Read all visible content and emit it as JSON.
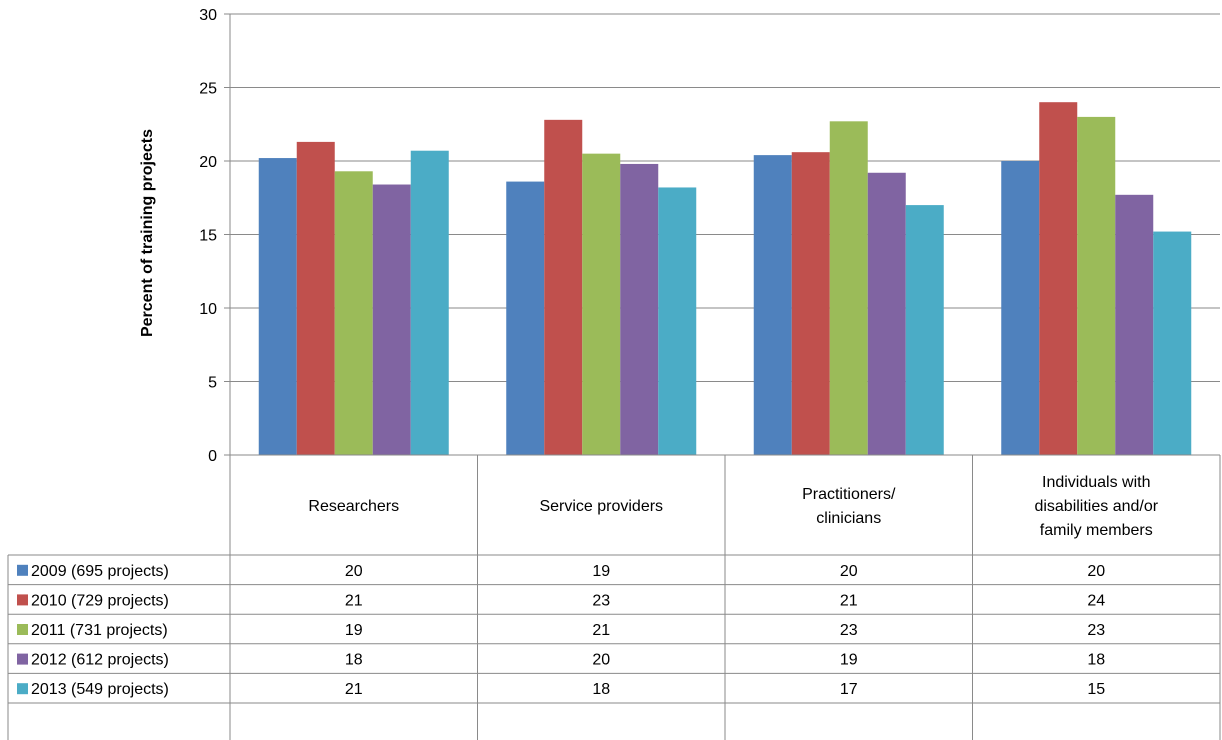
{
  "chart_data": {
    "type": "bar",
    "ylabel": "Percent of training projects",
    "xlabel": "",
    "ylim": [
      0,
      30
    ],
    "yticks": [
      0,
      5,
      10,
      15,
      20,
      25,
      30
    ],
    "grid": true,
    "legend_position": "data-table-left",
    "categories": [
      [
        "Researchers"
      ],
      [
        "Service providers"
      ],
      [
        "Practitioners/",
        "clinicians"
      ],
      [
        "Individuals with",
        "disabilities and/or",
        "family members"
      ]
    ],
    "series": [
      {
        "name": "2009 (695 projects)",
        "color": "#4f81bd",
        "values": [
          20.2,
          18.6,
          20.4,
          20.0
        ],
        "table_labels": [
          "20",
          "19",
          "20",
          "20"
        ]
      },
      {
        "name": "2010 (729 projects)",
        "color": "#c0504d",
        "values": [
          21.3,
          22.8,
          20.6,
          24.0
        ],
        "table_labels": [
          "21",
          "23",
          "21",
          "24"
        ]
      },
      {
        "name": "2011 (731 projects)",
        "color": "#9bbb59",
        "values": [
          19.3,
          20.5,
          22.7,
          23.0
        ],
        "table_labels": [
          "19",
          "21",
          "23",
          "23"
        ]
      },
      {
        "name": "2012 (612 projects)",
        "color": "#8064a2",
        "values": [
          18.4,
          19.8,
          19.2,
          17.7
        ],
        "table_labels": [
          "18",
          "20",
          "19",
          "18"
        ]
      },
      {
        "name": "2013 (549 projects)",
        "color": "#4bacc6",
        "values": [
          20.7,
          18.2,
          17.0,
          15.2
        ],
        "table_labels": [
          "21",
          "18",
          "17",
          "15"
        ]
      }
    ]
  }
}
